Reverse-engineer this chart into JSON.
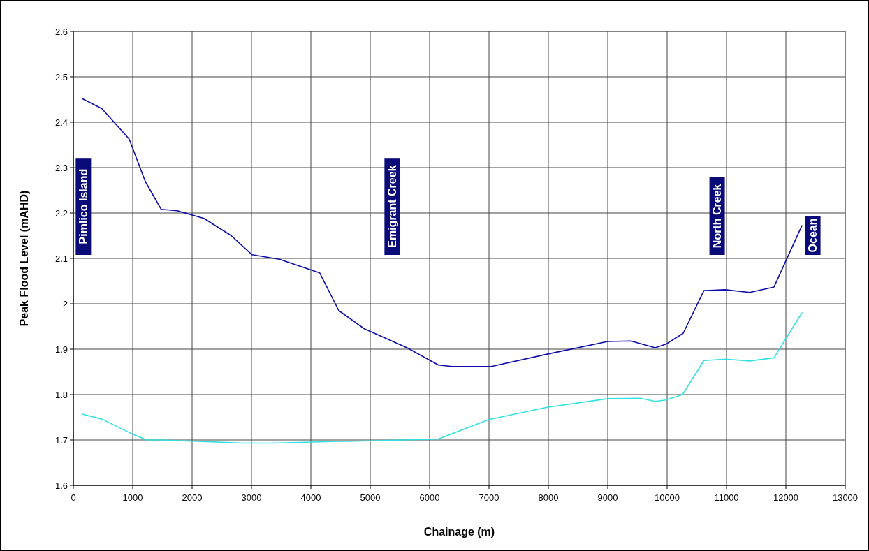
{
  "chart_data": {
    "type": "line",
    "xlabel": "Chainage (m)",
    "ylabel": "Peak Flood Level (mAHD)",
    "xlim": [
      0,
      13000
    ],
    "xticks": [
      0,
      1000,
      2000,
      3000,
      4000,
      5000,
      6000,
      7000,
      8000,
      9000,
      10000,
      11000,
      12000,
      13000
    ],
    "ylim": [
      1.6,
      2.6
    ],
    "yticks": [
      1.6,
      1.7,
      1.8,
      1.9,
      {
        "value": 2,
        "label": "2"
      },
      2.1,
      2.2,
      2.3,
      2.4,
      2.5,
      2.6
    ],
    "grid": true,
    "marker": "none",
    "line_style": "solid",
    "series": [
      {
        "color": "#0c0ca8",
        "x": [
          150,
          480,
          940,
          1210,
          1480,
          1750,
          2200,
          2660,
          3010,
          3470,
          4150,
          4470,
          4900,
          5620,
          6150,
          6380,
          7040,
          7980,
          9000,
          9390,
          9800,
          9980,
          10270,
          10620,
          10980,
          11390,
          11800,
          12270
        ],
        "values": [
          2.452,
          2.43,
          2.363,
          2.27,
          2.208,
          2.205,
          2.188,
          2.15,
          2.108,
          2.098,
          2.068,
          1.985,
          1.945,
          1.903,
          1.865,
          1.862,
          1.862,
          1.889,
          1.917,
          1.918,
          1.903,
          1.911,
          1.935,
          2.029,
          2.031,
          2.025,
          2.037,
          2.172
        ]
      },
      {
        "color": "#33e0e0",
        "x": [
          150,
          480,
          980,
          1240,
          1480,
          2880,
          3340,
          4470,
          4650,
          6140,
          7000,
          7980,
          9000,
          9550,
          9800,
          9980,
          10260,
          10620,
          10980,
          11390,
          11800,
          12270
        ],
        "values": [
          1.757,
          1.746,
          1.714,
          1.7,
          1.7,
          1.693,
          1.693,
          1.697,
          1.697,
          1.702,
          1.745,
          1.772,
          1.791,
          1.792,
          1.785,
          1.788,
          1.8,
          1.875,
          1.878,
          1.874,
          1.881,
          1.98
        ]
      }
    ],
    "annotations": [
      "Pimlico Island",
      "Emigrant Creek",
      "North Creek",
      "Ocean"
    ]
  }
}
